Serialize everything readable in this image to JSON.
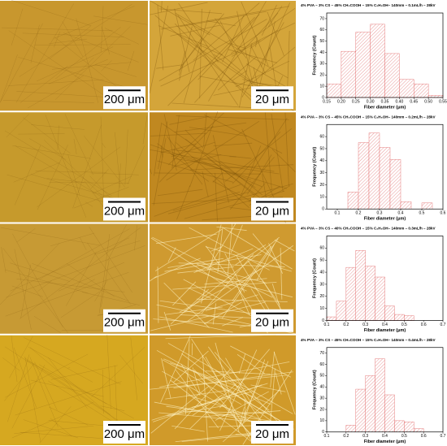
{
  "micrographs": [
    {
      "scale_bars": [
        "200 μm",
        "20 μm"
      ]
    },
    {
      "scale_bars": [
        "200 μm",
        "20 μm"
      ]
    },
    {
      "scale_bars": [
        "200 μm",
        "20 μm"
      ]
    },
    {
      "scale_bars": [
        "200 μm",
        "20 μm"
      ]
    }
  ],
  "chart_data": [
    {
      "type": "histogram",
      "title": "4% PVA – 3% CS – 45% CH₃COOH – 15% C₂H₅OH– 140mm – 0.1mL/h – 28kV",
      "x_label": "Fiber diameter (μm)",
      "y_label": "Frequency (Count)",
      "color": "#e06060",
      "bins": [
        0.15,
        0.2,
        0.25,
        0.3,
        0.35,
        0.4,
        0.45,
        0.5,
        0.55
      ],
      "counts": [
        12,
        41,
        58,
        65,
        39,
        16,
        12,
        2
      ],
      "xlim": [
        0.15,
        0.55
      ],
      "xticks": [
        0.15,
        {
          "value": 0.2,
          "label": "0.20"
        },
        0.25,
        {
          "value": 0.3,
          "label": "0.30"
        },
        0.35,
        {
          "value": 0.4,
          "label": "0.40"
        },
        0.45,
        {
          "value": 0.5,
          "label": "0.50"
        },
        0.55
      ],
      "ylim": [
        0,
        75
      ],
      "yticks": [
        0,
        10,
        20,
        30,
        40,
        50,
        60,
        70
      ]
    },
    {
      "type": "histogram",
      "title": "4% PVA – 3% CS – 45% CH₃COOH – 15% C₂H₅OH– 140mm – 0.2mL/h – 28kV",
      "x_label": "Fiber diameter (μm)",
      "y_label": "Frequency (Count)",
      "color": "#e06060",
      "bins": [
        0.15,
        0.2,
        0.25,
        0.3,
        0.35,
        0.4,
        0.45,
        0.5,
        0.55
      ],
      "counts": [
        14,
        55,
        63,
        51,
        41,
        6,
        0,
        5
      ],
      "xlim": [
        0.05,
        0.6
      ],
      "xticks": [
        0.1,
        0.2,
        0.3,
        0.4,
        0.5,
        0.6
      ],
      "ylim": [
        0,
        70
      ],
      "yticks": [
        0,
        10,
        20,
        30,
        40,
        50,
        60
      ]
    },
    {
      "type": "histogram",
      "title": "4% PVA – 3% CS – 40% CH₃COOH – 15% C₂H₅OH– 140mm – 0.3mL/h – 28kV",
      "x_label": "Fiber diameter (μm)",
      "y_label": "Frequency (Count)",
      "color": "#e06060",
      "bins": [
        0.1,
        0.15,
        0.2,
        0.25,
        0.3,
        0.35,
        0.4,
        0.45,
        0.5,
        0.55
      ],
      "counts": [
        3,
        16,
        44,
        58,
        45,
        36,
        12,
        5,
        4
      ],
      "xlim": [
        0.1,
        0.7
      ],
      "xticks": [
        0.1,
        0.2,
        0.3,
        0.4,
        0.5,
        0.6,
        0.7
      ],
      "ylim": [
        0,
        70
      ],
      "yticks": [
        0,
        10,
        20,
        30,
        40,
        50,
        60
      ]
    },
    {
      "type": "histogram",
      "title": "4% PVA – 3% CS – 45% CH₃COOH – 15% C₂H₅OH– 140mm – 0.4mL/h – 28kV",
      "x_label": "Fiber diameter (μm)",
      "y_label": "Frequency (Count)",
      "color": "#e06060",
      "bins": [
        0.2,
        0.25,
        0.3,
        0.35,
        0.4,
        0.45,
        0.5,
        0.55,
        0.6
      ],
      "counts": [
        6,
        38,
        50,
        65,
        33,
        10,
        9,
        3
      ],
      "xlim": [
        0.1,
        0.7
      ],
      "xticks": [
        0.1,
        0.2,
        0.3,
        0.4,
        0.5,
        0.6,
        0.7
      ],
      "ylim": [
        0,
        75
      ],
      "yticks": [
        0,
        10,
        20,
        30,
        40,
        50,
        60,
        70
      ]
    }
  ]
}
